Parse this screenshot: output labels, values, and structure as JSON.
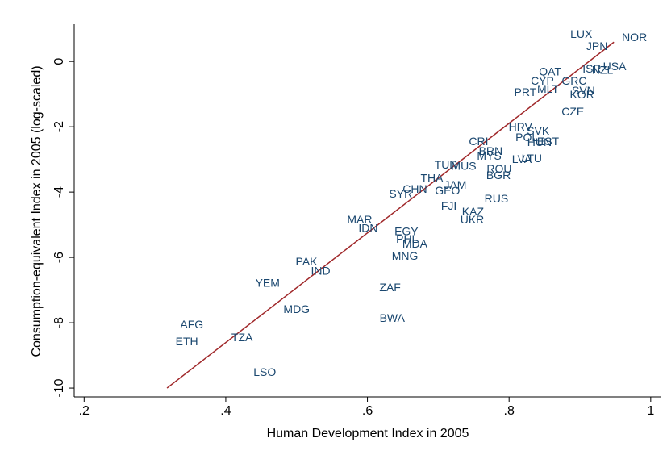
{
  "chart_data": {
    "type": "scatter",
    "x_label": "Human Development Index in 2005",
    "y_label": "Consumption-equivalent Index in 2005 (log-scaled)",
    "labels": [
      "LUX",
      "NOR",
      "JPN",
      "USA",
      "NZL",
      "ISR",
      "QAT",
      "GRC",
      "CYP",
      "PRT",
      "MLT",
      "SVN",
      "KOR",
      "CZE",
      "HRV",
      "SVK",
      "POL",
      "EST",
      "HUN",
      "CRI",
      "BRN",
      "MYS",
      "LVA",
      "LTU",
      "TUR",
      "MUS",
      "ROU",
      "BGR",
      "THA",
      "JAM",
      "CHN",
      "SYR",
      "GEO",
      "RUS",
      "FJI",
      "KAZ",
      "UKR",
      "MAR",
      "IDN",
      "EGY",
      "PHL",
      "MDA",
      "MNG",
      "PAK",
      "IND",
      "YEM",
      "ZAF",
      "MDG",
      "BWA",
      "AFG",
      "ETH",
      "TZA",
      "LSO"
    ],
    "x": [
      0.902,
      0.977,
      0.924,
      0.949,
      0.932,
      0.917,
      0.858,
      0.892,
      0.847,
      0.823,
      0.855,
      0.905,
      0.903,
      0.89,
      0.816,
      0.841,
      0.825,
      0.855,
      0.843,
      0.757,
      0.774,
      0.772,
      0.818,
      0.832,
      0.711,
      0.736,
      0.786,
      0.785,
      0.691,
      0.724,
      0.667,
      0.647,
      0.713,
      0.782,
      0.715,
      0.749,
      0.748,
      0.589,
      0.601,
      0.655,
      0.656,
      0.667,
      0.653,
      0.514,
      0.534,
      0.459,
      0.632,
      0.5,
      0.635,
      0.352,
      0.345,
      0.423,
      0.455
    ],
    "y": [
      0.84,
      0.74,
      0.47,
      -0.15,
      -0.25,
      -0.22,
      -0.3,
      -0.59,
      -0.59,
      -0.94,
      -0.84,
      -0.89,
      -1.01,
      -1.53,
      -2.0,
      -2.12,
      -2.32,
      -2.44,
      -2.47,
      -2.44,
      -2.74,
      -2.89,
      -2.99,
      -2.96,
      -3.16,
      -3.19,
      -3.28,
      -3.48,
      -3.56,
      -3.78,
      -3.9,
      -4.05,
      -3.95,
      -4.2,
      -4.42,
      -4.59,
      -4.84,
      -4.84,
      -5.09,
      -5.19,
      -5.43,
      -5.58,
      -5.95,
      -6.12,
      -6.4,
      -6.77,
      -6.91,
      -7.58,
      -7.85,
      -8.05,
      -8.57,
      -8.44,
      -9.51
    ],
    "color": "#1a476f",
    "fit_line": {
      "x": [
        0.317,
        0.948
      ],
      "y": [
        -10,
        0.59
      ],
      "color": "#a0282a"
    },
    "xlim": [
      0.186,
      1.015
    ],
    "ylim": [
      -10.27,
      1.14
    ],
    "xticks": [
      {
        "value": 0.2,
        "label": ".2"
      },
      {
        "value": 0.4,
        "label": ".4"
      },
      {
        "value": 0.6,
        "label": ".6"
      },
      {
        "value": 0.8,
        "label": ".8"
      },
      1
    ],
    "yticks": [
      0,
      -2,
      -4,
      -6,
      -8,
      -10
    ]
  }
}
